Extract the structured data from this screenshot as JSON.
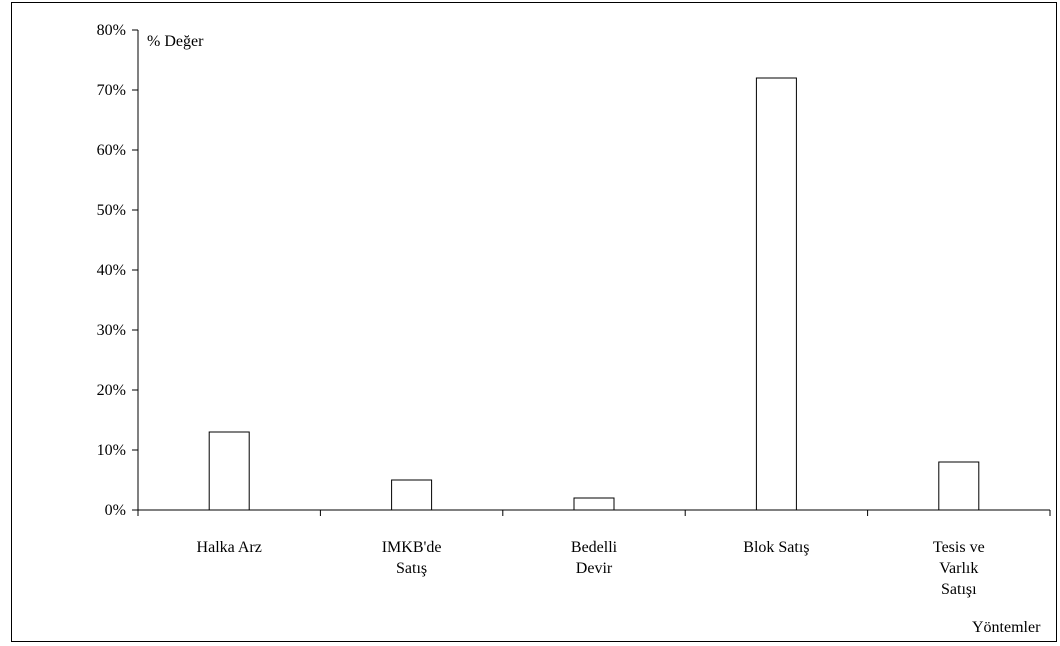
{
  "chart_data": {
    "type": "bar",
    "title": "",
    "ylabel": "% Değer",
    "xlabel": "Yöntemler",
    "categories": [
      [
        "Halka Arz"
      ],
      [
        "IMKB'de",
        "Satış"
      ],
      [
        "Bedelli",
        "Devir"
      ],
      [
        "Blok Satış"
      ],
      [
        "Tesis ve",
        "Varlık",
        "Satışı"
      ]
    ],
    "values": [
      13,
      5,
      2,
      72,
      8
    ],
    "ylim": [
      0,
      80
    ],
    "yticks": [
      0,
      10,
      20,
      30,
      40,
      50,
      60,
      70,
      80
    ],
    "ytick_labels": [
      "0%",
      "10%",
      "20%",
      "30%",
      "40%",
      "50%",
      "60%",
      "70%",
      "80%"
    ],
    "grid": false,
    "legend": "none",
    "colors": {
      "bar_fill": "#ffffff",
      "bar_stroke": "#000000",
      "axis": "#000000"
    }
  }
}
